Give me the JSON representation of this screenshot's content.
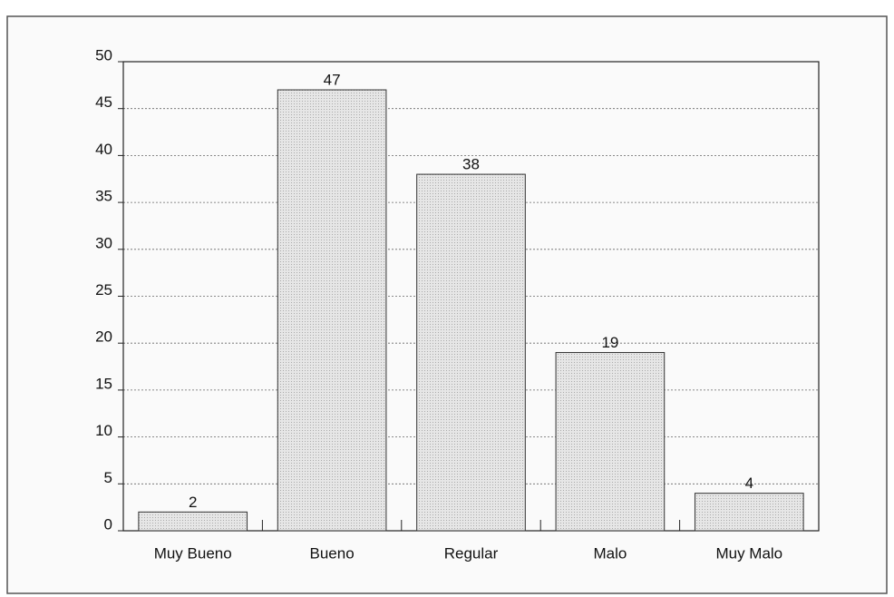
{
  "chart_data": {
    "type": "bar",
    "categories": [
      "Muy Bueno",
      "Bueno",
      "Regular",
      "Malo",
      "Muy Malo"
    ],
    "values": [
      2,
      47,
      38,
      19,
      4
    ],
    "color": "#dedede",
    "ylim": [
      0,
      50
    ],
    "yticks": [
      0,
      5,
      10,
      15,
      20,
      25,
      30,
      35,
      40,
      45,
      50
    ],
    "grid": true
  }
}
